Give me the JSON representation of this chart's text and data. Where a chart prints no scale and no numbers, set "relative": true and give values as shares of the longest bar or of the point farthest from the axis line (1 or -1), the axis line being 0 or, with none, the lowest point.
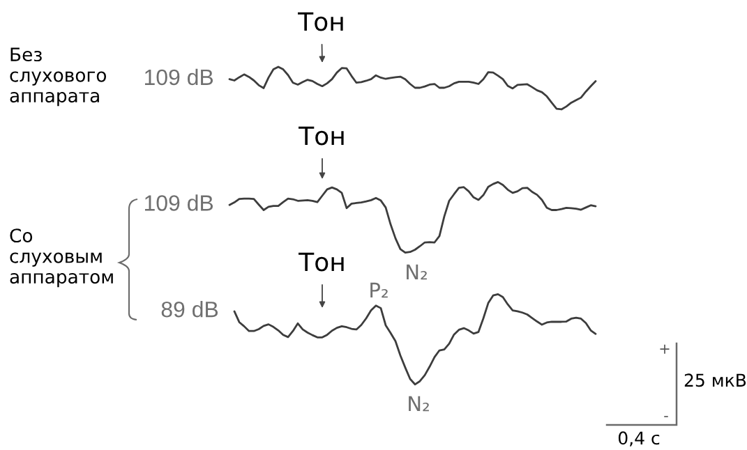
{
  "chart_data": {
    "type": "line",
    "relative": true,
    "categories": [
      null,
      null,
      null,
      null,
      null,
      null,
      null,
      null,
      null,
      null,
      null,
      null,
      null,
      null,
      null,
      null,
      null,
      null,
      null,
      null,
      null,
      null,
      null,
      null,
      null,
      null,
      null,
      null,
      null,
      null,
      null,
      null,
      null,
      null,
      null,
      null,
      null,
      null,
      null,
      null,
      null,
      null,
      null,
      null,
      null,
      null,
      null,
      null,
      null,
      null,
      null,
      null,
      null,
      null,
      null,
      null,
      null,
      null,
      null,
      null,
      null,
      null,
      null,
      null,
      null,
      null,
      null,
      null,
      null,
      null,
      null,
      null,
      null,
      null,
      null,
      null
    ],
    "series": [
      {
        "name": "109 dB",
        "color": "#3d3d3d",
        "values": [
          0.961,
          0.957,
          0.967,
          0.976,
          0.968,
          0.957,
          0.942,
          0.933,
          0.966,
          0.992,
          1.0,
          0.992,
          0.974,
          0.95,
          0.944,
          0.952,
          0.959,
          0.955,
          0.946,
          0.939,
          0.948,
          0.961,
          0.982,
          0.996,
          0.995,
          0.971,
          0.95,
          0.952,
          0.956,
          0.961,
          0.973,
          0.966,
          0.962,
          0.965,
          0.967,
          0.969,
          0.961,
          0.946,
          0.934,
          0.934,
          0.938,
          0.944,
          0.946,
          0.934,
          0.934,
          0.939,
          0.948,
          0.953,
          0.953,
          0.953,
          0.95,
          0.946,
          0.961,
          0.983,
          0.982,
          0.972,
          0.961,
          0.94,
          0.932,
          0.943,
          0.944,
          0.945,
          0.936,
          0.926,
          0.92,
          0.907,
          0.887,
          0.868,
          0.866,
          0.875,
          0.887,
          0.895,
          0.903,
          0.922,
          0.939,
          0.955
        ]
      },
      {
        "name": "109 dB",
        "color": "#3d3d3d",
        "values": [
          0.565,
          0.573,
          0.584,
          0.585,
          0.585,
          0.584,
          0.566,
          0.549,
          0.559,
          0.562,
          0.562,
          0.574,
          0.585,
          0.583,
          0.578,
          0.579,
          0.58,
          0.578,
          0.574,
          0.594,
          0.614,
          0.62,
          0.614,
          0.603,
          0.555,
          0.569,
          0.571,
          0.573,
          0.576,
          0.58,
          0.587,
          0.579,
          0.557,
          0.504,
          0.46,
          0.426,
          0.415,
          0.417,
          0.424,
          0.435,
          0.447,
          0.448,
          0.447,
          0.467,
          0.529,
          0.578,
          0.599,
          0.619,
          0.621,
          0.608,
          0.589,
          0.581,
          0.596,
          0.622,
          0.631,
          0.637,
          0.628,
          0.613,
          0.603,
          0.608,
          0.618,
          0.619,
          0.606,
          0.597,
          0.581,
          0.556,
          0.549,
          0.549,
          0.552,
          0.556,
          0.555,
          0.553,
          0.55,
          0.557,
          0.564,
          0.561
        ]
      },
      {
        "name": "89 dB",
        "color": "#3d3d3d",
        "values": [
          null,
          0.23,
          0.196,
          0.183,
          0.168,
          0.168,
          0.174,
          0.184,
          0.189,
          0.181,
          0.17,
          0.156,
          0.149,
          0.168,
          0.192,
          0.173,
          0.163,
          0.155,
          0.148,
          0.148,
          0.156,
          0.169,
          0.178,
          0.183,
          0.18,
          0.175,
          0.173,
          0.187,
          0.208,
          0.233,
          0.248,
          0.24,
          0.186,
          0.162,
          0.136,
          0.091,
          0.053,
          0.017,
          0,
          0.01,
          0.029,
          0.056,
          0.086,
          0.107,
          0.11,
          0.128,
          0.157,
          0.172,
          0.177,
          0.17,
          0.16,
          0.165,
          0.208,
          0.256,
          0.28,
          0.284,
          0.275,
          0.252,
          0.233,
          0.23,
          0.226,
          0.22,
          0.209,
          0.198,
          0.188,
          0.195,
          0.197,
          0.197,
          0.197,
          0.198,
          0.207,
          0.21,
          0.207,
          0.193,
          0.17,
          0.159
        ]
      }
    ],
    "annotations": [
      "Без\nслухового\nаппарата",
      "Со\nслуховым\nаппаратом",
      "Тон",
      "Тон",
      "Тон",
      "P₂",
      "N₂",
      "N₂",
      "+",
      "-",
      "25 мкВ",
      "0,4 с"
    ]
  }
}
